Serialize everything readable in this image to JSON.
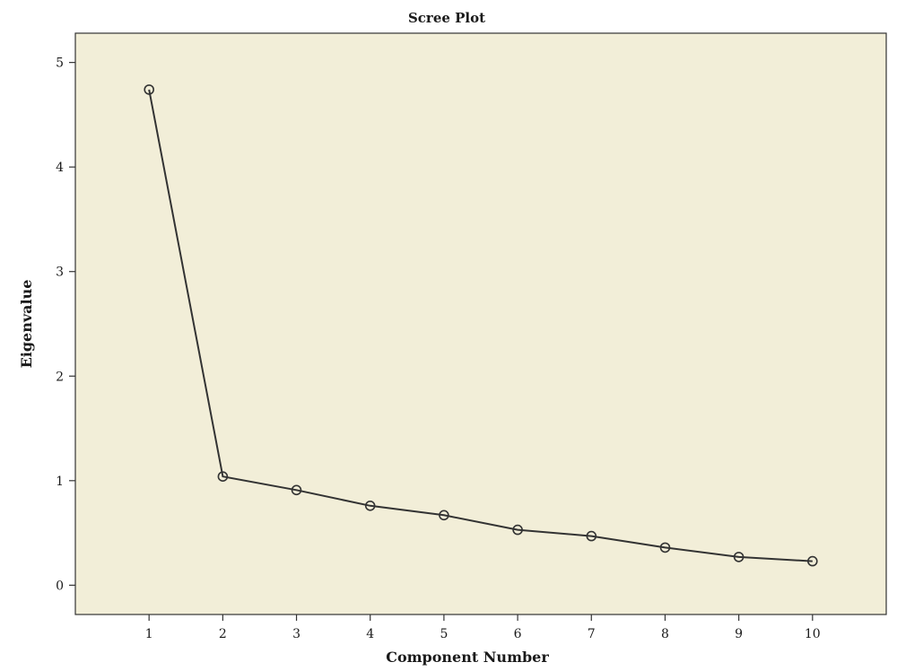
{
  "chart_data": {
    "type": "line",
    "title": "Scree Plot",
    "xlabel": "Component Number",
    "ylabel": "Eigenvalue",
    "x": [
      1,
      2,
      3,
      4,
      5,
      6,
      7,
      8,
      9,
      10
    ],
    "values": [
      4.74,
      1.04,
      0.91,
      0.76,
      0.67,
      0.53,
      0.47,
      0.36,
      0.27,
      0.23
    ],
    "xlim": [
      0,
      11
    ],
    "ylim": [
      -0.28,
      5.28
    ],
    "x_ticks": [
      1,
      2,
      3,
      4,
      5,
      6,
      7,
      8,
      9,
      10
    ],
    "y_ticks": [
      0,
      1,
      2,
      3,
      4,
      5
    ],
    "marker": "open-circle",
    "grid": false,
    "legend": "none",
    "colors": {
      "background": "#f2eed8",
      "line": "#333333"
    }
  }
}
